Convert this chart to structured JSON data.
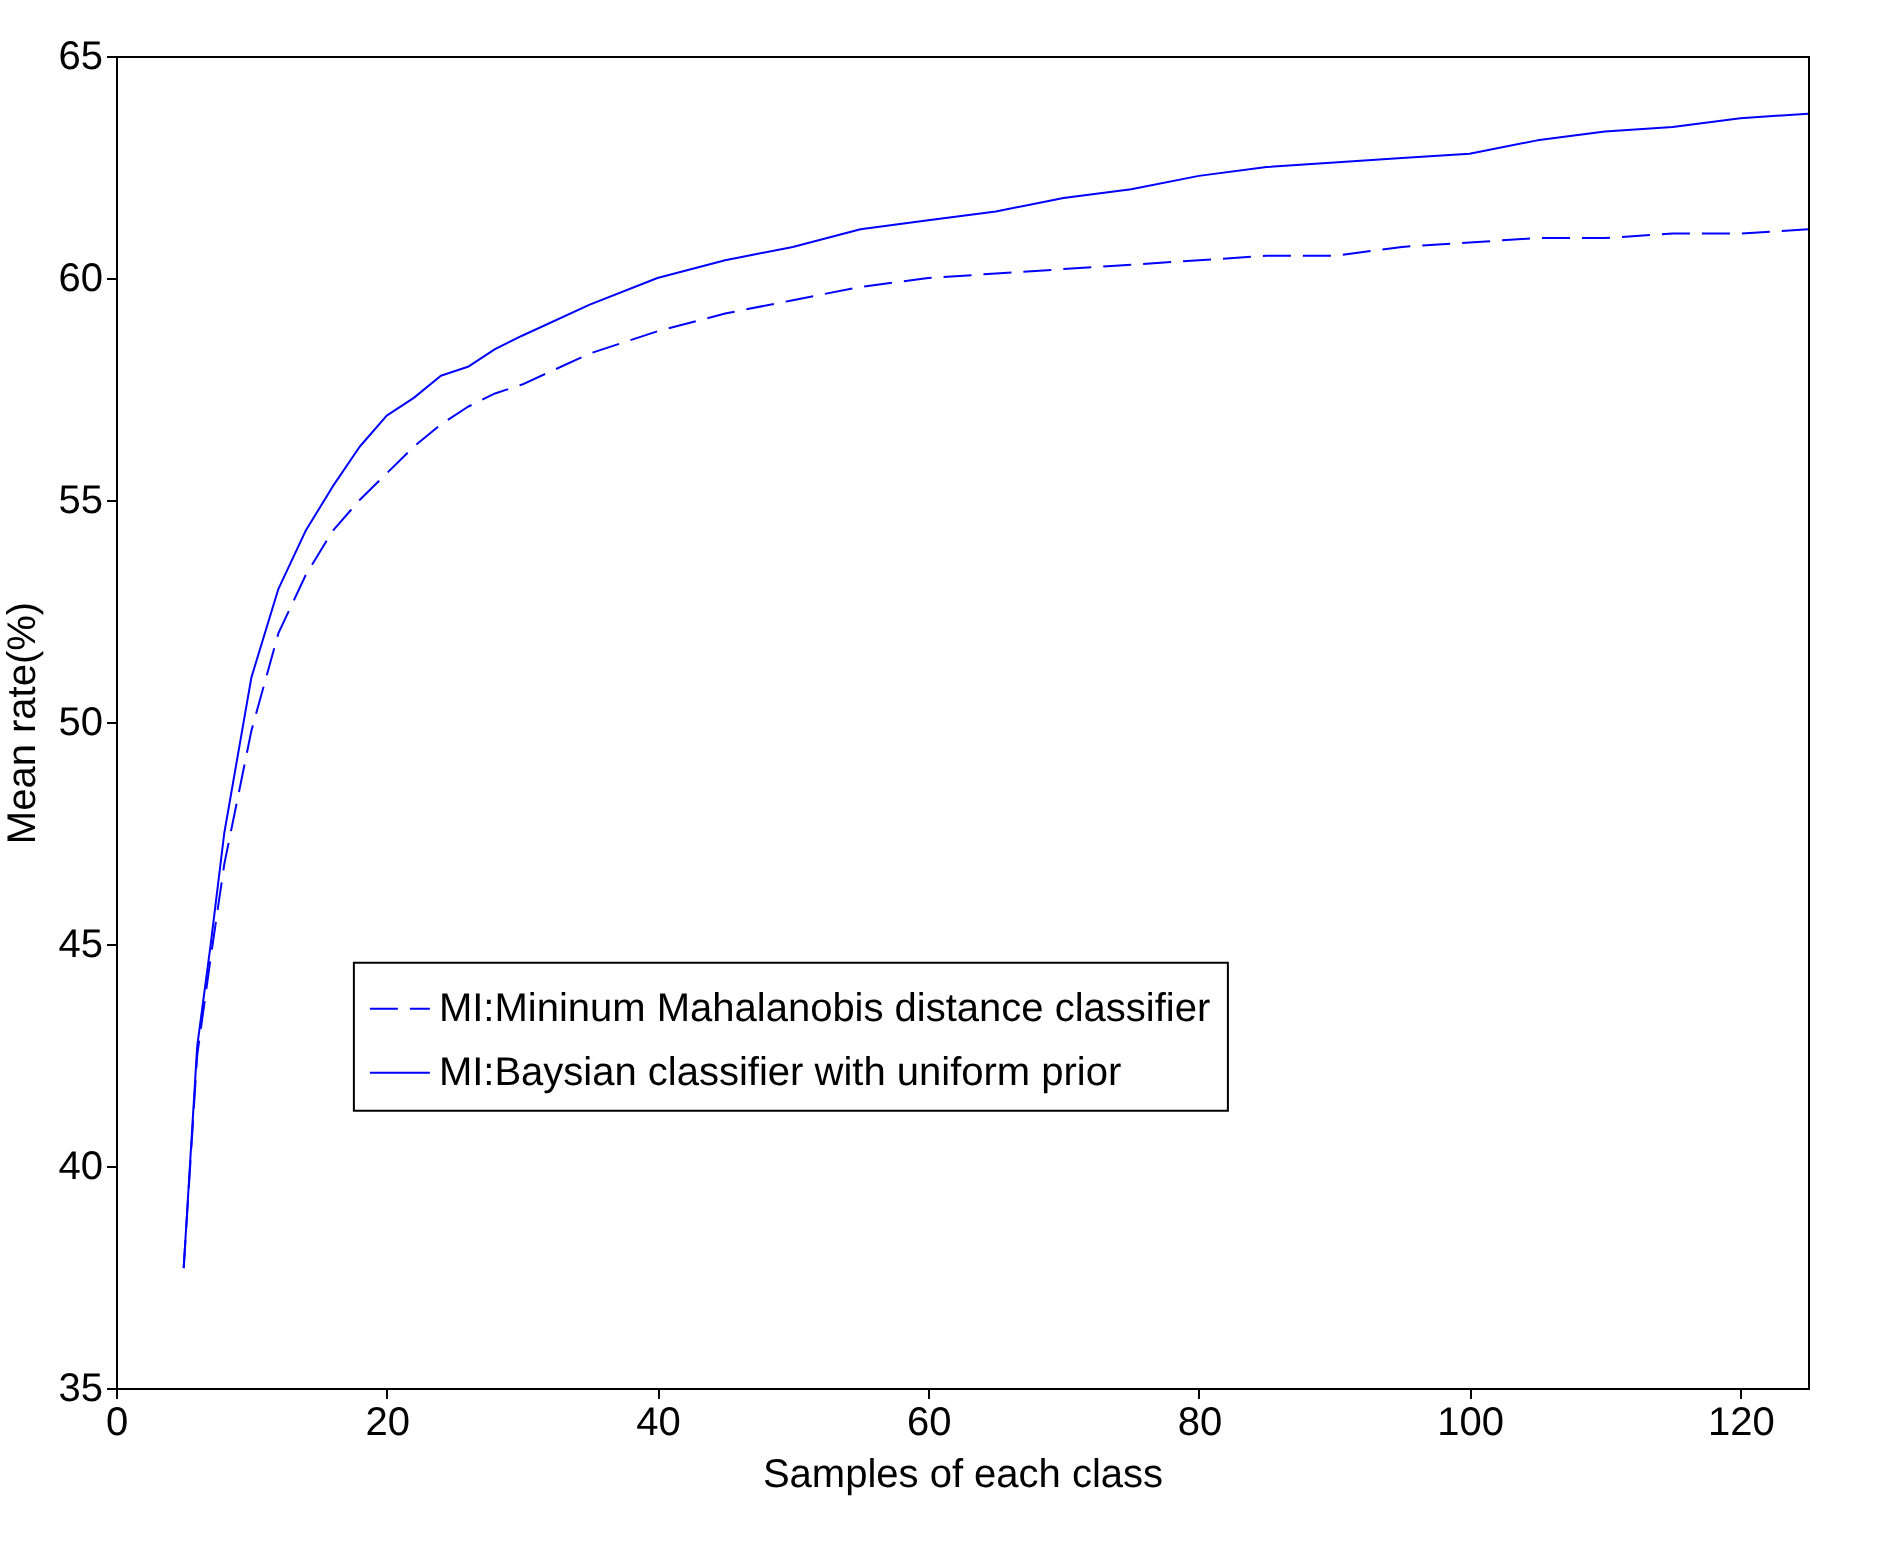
{
  "chart_data": {
    "type": "line",
    "xlabel": "Samples of each class",
    "ylabel": "Mean rate(%)",
    "x": [
      5,
      6,
      7,
      8,
      10,
      12,
      14,
      16,
      18,
      20,
      22,
      24,
      26,
      28,
      30,
      35,
      40,
      45,
      50,
      55,
      60,
      65,
      70,
      75,
      80,
      85,
      90,
      95,
      100,
      105,
      110,
      115,
      120,
      125
    ],
    "series": [
      {
        "name": "MI:Mininum Mahalanobis distance classifier",
        "color": "#0000ff",
        "line_style": "dashed",
        "values": [
          37.7,
          42.5,
          44.7,
          46.8,
          49.8,
          52,
          53.3,
          54.3,
          55,
          55.6,
          56.2,
          56.7,
          57.1,
          57.4,
          57.6,
          58.3,
          58.8,
          59.2,
          59.5,
          59.8,
          60,
          60.1,
          60.2,
          60.3,
          60.4,
          60.5,
          60.5,
          60.7,
          60.8,
          60.9,
          60.9,
          61,
          61,
          61.1
        ]
      },
      {
        "name": "MI:Baysian classifier with uniform prior",
        "color": "#0000ff",
        "line_style": "solid",
        "values": [
          37.7,
          42.7,
          45,
          47.5,
          51,
          53,
          54.3,
          55.3,
          56.2,
          56.9,
          57.3,
          57.8,
          58,
          58.4,
          58.7,
          59.4,
          60,
          60.4,
          60.7,
          61.1,
          61.3,
          61.5,
          61.8,
          62,
          62.3,
          62.5,
          62.6,
          62.7,
          62.8,
          63.1,
          63.3,
          63.4,
          63.6,
          63.7
        ]
      }
    ],
    "xlim": [
      0,
      125
    ],
    "xticks": [
      0,
      20,
      40,
      60,
      80,
      100,
      120
    ],
    "ylim": [
      35,
      65
    ],
    "yticks": [
      35,
      40,
      45,
      50,
      55,
      60,
      65
    ],
    "grid": false,
    "legend": "bottom left",
    "marker": "none"
  }
}
